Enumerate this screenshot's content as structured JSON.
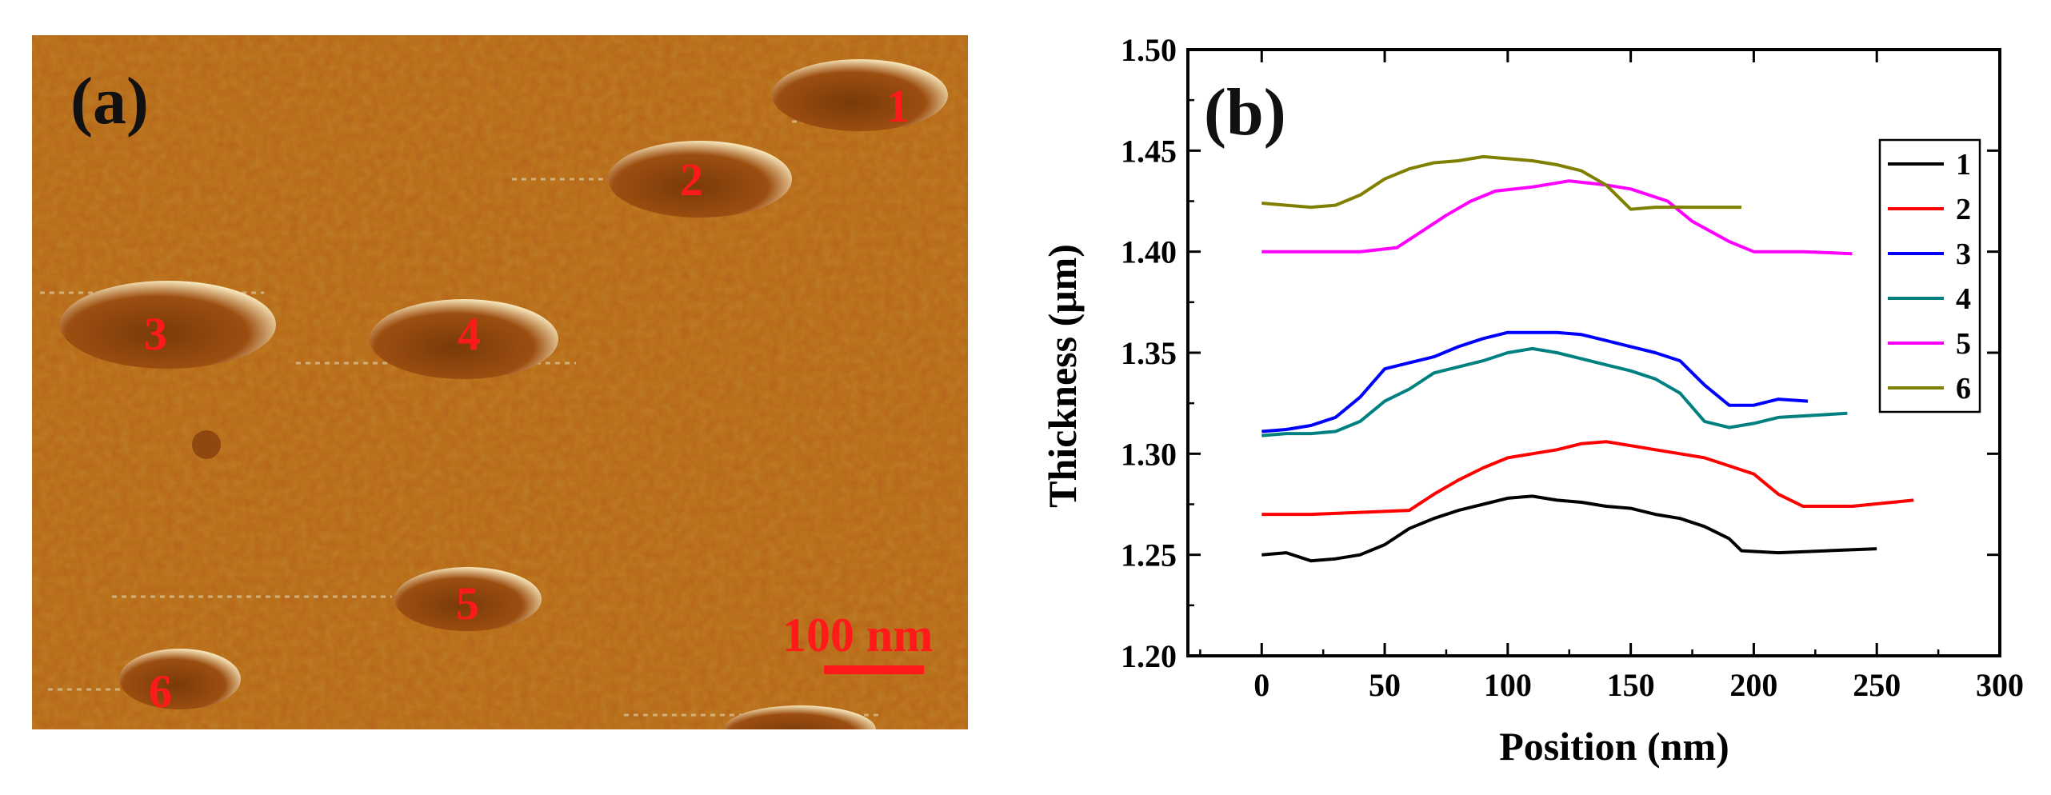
{
  "panel_a": {
    "tag": "(a)",
    "scale_bar_label": "100 nm",
    "markers": [
      {
        "label": "1"
      },
      {
        "label": "2"
      },
      {
        "label": "3"
      },
      {
        "label": "4"
      },
      {
        "label": "5"
      },
      {
        "label": "6"
      }
    ]
  },
  "chart_data": {
    "type": "line",
    "panel_tag": "(b)",
    "title": "",
    "xlabel": "Position (nm)",
    "ylabel": "Thickness (μm)",
    "xlim": [
      -30,
      300
    ],
    "ylim": [
      1.2,
      1.5
    ],
    "xticks": [
      0,
      50,
      100,
      150,
      200,
      250,
      300
    ],
    "yticks": [
      1.2,
      1.25,
      1.3,
      1.35,
      1.4,
      1.45,
      1.5
    ],
    "xtick_labels": [
      "0",
      "50",
      "100",
      "150",
      "200",
      "250",
      "300"
    ],
    "ytick_labels": [
      "1.20",
      "1.25",
      "1.30",
      "1.35",
      "1.40",
      "1.45",
      "1.50"
    ],
    "legend_position": "top-right",
    "series": [
      {
        "name": "1",
        "color": "#000000",
        "x": [
          0,
          10,
          20,
          30,
          40,
          50,
          60,
          70,
          80,
          90,
          100,
          110,
          120,
          130,
          140,
          150,
          160,
          170,
          180,
          190,
          195,
          210,
          230,
          250
        ],
        "y": [
          1.25,
          1.251,
          1.247,
          1.248,
          1.25,
          1.255,
          1.263,
          1.268,
          1.272,
          1.275,
          1.278,
          1.279,
          1.277,
          1.276,
          1.274,
          1.273,
          1.27,
          1.268,
          1.264,
          1.258,
          1.252,
          1.251,
          1.252,
          1.253
        ]
      },
      {
        "name": "2",
        "color": "#ff0000",
        "x": [
          0,
          20,
          40,
          60,
          70,
          80,
          90,
          100,
          110,
          120,
          130,
          140,
          150,
          160,
          170,
          180,
          190,
          200,
          210,
          220,
          240,
          265
        ],
        "y": [
          1.27,
          1.27,
          1.271,
          1.272,
          1.28,
          1.287,
          1.293,
          1.298,
          1.3,
          1.302,
          1.305,
          1.306,
          1.304,
          1.302,
          1.3,
          1.298,
          1.294,
          1.29,
          1.28,
          1.274,
          1.274,
          1.277
        ]
      },
      {
        "name": "3",
        "color": "#0000ff",
        "x": [
          0,
          10,
          20,
          30,
          40,
          50,
          60,
          70,
          80,
          90,
          100,
          110,
          120,
          130,
          140,
          150,
          160,
          170,
          180,
          190,
          200,
          210,
          222
        ],
        "y": [
          1.311,
          1.312,
          1.314,
          1.318,
          1.328,
          1.342,
          1.345,
          1.348,
          1.353,
          1.357,
          1.36,
          1.36,
          1.36,
          1.359,
          1.356,
          1.353,
          1.35,
          1.346,
          1.334,
          1.324,
          1.324,
          1.327,
          1.326
        ]
      },
      {
        "name": "4",
        "color": "#008080",
        "x": [
          0,
          10,
          20,
          30,
          40,
          50,
          60,
          70,
          80,
          90,
          100,
          110,
          120,
          130,
          140,
          150,
          160,
          170,
          180,
          190,
          200,
          210,
          238
        ],
        "y": [
          1.309,
          1.31,
          1.31,
          1.311,
          1.316,
          1.326,
          1.332,
          1.34,
          1.343,
          1.346,
          1.35,
          1.352,
          1.35,
          1.347,
          1.344,
          1.341,
          1.337,
          1.33,
          1.316,
          1.313,
          1.315,
          1.318,
          1.32
        ]
      },
      {
        "name": "5",
        "color": "#ff00ff",
        "x": [
          0,
          20,
          40,
          55,
          65,
          75,
          85,
          95,
          110,
          125,
          140,
          150,
          165,
          175,
          190,
          200,
          220,
          240
        ],
        "y": [
          1.4,
          1.4,
          1.4,
          1.402,
          1.41,
          1.418,
          1.425,
          1.43,
          1.432,
          1.435,
          1.433,
          1.431,
          1.425,
          1.415,
          1.405,
          1.4,
          1.4,
          1.399
        ]
      },
      {
        "name": "6",
        "color": "#808000",
        "x": [
          0,
          10,
          20,
          30,
          40,
          50,
          60,
          70,
          80,
          90,
          100,
          110,
          120,
          130,
          140,
          150,
          160,
          170,
          180,
          195
        ],
        "y": [
          1.424,
          1.423,
          1.422,
          1.423,
          1.428,
          1.436,
          1.441,
          1.444,
          1.445,
          1.447,
          1.446,
          1.445,
          1.443,
          1.44,
          1.433,
          1.421,
          1.422,
          1.422,
          1.422,
          1.422
        ]
      }
    ]
  }
}
